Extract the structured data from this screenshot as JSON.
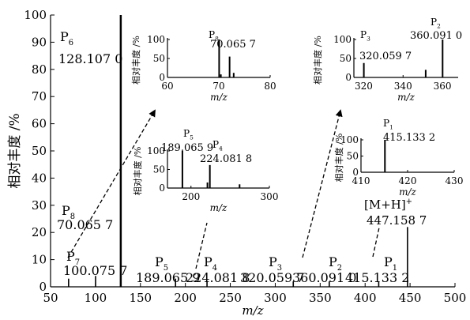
{
  "chart_data": [
    {
      "type": "bar",
      "title": "",
      "xlabel": "m/z",
      "ylabel": "相对丰度 /%",
      "xlim": [
        50,
        500
      ],
      "ylim": [
        0,
        100
      ],
      "xticks": [
        50,
        100,
        150,
        200,
        250,
        300,
        350,
        400,
        450,
        500
      ],
      "yticks": [
        0,
        10,
        20,
        30,
        40,
        50,
        60,
        70,
        80,
        90,
        100
      ],
      "x": [
        70.0657,
        100.0757,
        128.107,
        189.0659,
        224.0818,
        320.0597,
        360.091,
        415.1332,
        447.1587
      ],
      "values": [
        3,
        4,
        100,
        3,
        2,
        2,
        2,
        2,
        22
      ],
      "annotations": [
        {
          "name": "P6",
          "value": "128.107 0"
        },
        {
          "name": "P8",
          "value": "70.065 7"
        },
        {
          "name": "P7",
          "value": "100.075 7"
        },
        {
          "name": "P5",
          "value": "189.065 9"
        },
        {
          "name": "P4",
          "value": "224.081 8"
        },
        {
          "name": "P3",
          "value": "320.059 7"
        },
        {
          "name": "P2",
          "value": "360.091 0"
        },
        {
          "name": "P1",
          "value": "415.133 2"
        },
        {
          "name": "[M+H]+",
          "value": "447.158 7"
        }
      ]
    },
    {
      "type": "bar",
      "xlabel": "m/z",
      "ylabel": "相对丰度 /%",
      "xlim": [
        60,
        80
      ],
      "ylim": [
        0,
        100
      ],
      "xticks": [
        60,
        70,
        80
      ],
      "yticks": [
        0,
        50,
        100
      ],
      "x": [
        70.0657,
        70.4,
        72.1,
        72.9
      ],
      "values": [
        100,
        8,
        55,
        12
      ],
      "annotations": [
        {
          "name": "P8",
          "value": "70.065 7"
        }
      ]
    },
    {
      "type": "bar",
      "xlabel": "m/z",
      "ylabel": "相对丰度 /%",
      "xlim": [
        315,
        368
      ],
      "ylim": [
        0,
        100
      ],
      "xticks": [
        320,
        340,
        360
      ],
      "yticks": [
        0,
        50,
        100
      ],
      "x": [
        320.0597,
        351.5,
        360.091
      ],
      "values": [
        38,
        20,
        100
      ],
      "annotations": [
        {
          "name": "P3",
          "value": "320.059 7"
        },
        {
          "name": "P2",
          "value": "360.091 0"
        }
      ]
    },
    {
      "type": "bar",
      "xlabel": "m/z",
      "ylabel": "相对丰度 /%",
      "xlim": [
        170,
        300
      ],
      "ylim": [
        0,
        100
      ],
      "xticks": [
        200,
        300
      ],
      "yticks": [
        0,
        50,
        100
      ],
      "x": [
        189.0659,
        221.0,
        224.0818,
        262.0
      ],
      "values": [
        100,
        15,
        62,
        10
      ],
      "annotations": [
        {
          "name": "P5",
          "value": "189.065 9"
        },
        {
          "name": "P4",
          "value": "224.081 8"
        }
      ]
    },
    {
      "type": "bar",
      "xlabel": "m/z",
      "ylabel": "相对丰度 /%",
      "xlim": [
        410,
        430
      ],
      "ylim": [
        0,
        100
      ],
      "xticks": [
        410,
        420,
        430
      ],
      "yticks": [
        0,
        50,
        100
      ],
      "x": [
        415.1332
      ],
      "values": [
        100
      ],
      "annotations": [
        {
          "name": "P1",
          "value": "415.133 2"
        }
      ]
    }
  ]
}
